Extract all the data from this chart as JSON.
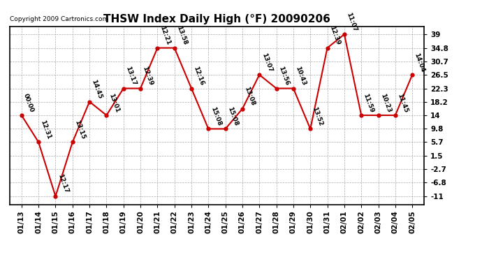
{
  "title": "THSW Index Daily High (°F) 20090206",
  "copyright": "Copyright 2009 Cartronics.com",
  "dates": [
    "01/13",
    "01/14",
    "01/15",
    "01/16",
    "01/17",
    "01/18",
    "01/19",
    "01/20",
    "01/21",
    "01/22",
    "01/23",
    "01/24",
    "01/25",
    "01/26",
    "01/27",
    "01/28",
    "01/29",
    "01/30",
    "01/31",
    "02/01",
    "02/02",
    "02/03",
    "02/04",
    "02/05"
  ],
  "values": [
    14.0,
    5.7,
    -11.0,
    5.7,
    18.2,
    14.0,
    22.3,
    22.3,
    34.8,
    34.8,
    22.3,
    9.8,
    9.8,
    16.0,
    26.5,
    22.3,
    22.3,
    9.8,
    34.8,
    39.0,
    14.0,
    14.0,
    14.0,
    26.5
  ],
  "labels": [
    "00:00",
    "12:31",
    "12:17",
    "13:15",
    "14:45",
    "13:01",
    "13:17",
    "12:39",
    "12:21",
    "13:58",
    "12:16",
    "15:08",
    "15:08",
    "13:08",
    "13:07",
    "13:56",
    "10:43",
    "13:52",
    "12:39",
    "11:07",
    "11:59",
    "10:23",
    "11:45",
    "14:04"
  ],
  "line_color": "#cc0000",
  "marker_color": "#cc0000",
  "bg_color": "#ffffff",
  "grid_color": "#aaaaaa",
  "yticks": [
    39.0,
    34.8,
    30.7,
    26.5,
    22.3,
    18.2,
    14.0,
    9.8,
    5.7,
    1.5,
    -2.7,
    -6.8,
    -11.0
  ],
  "ylim": [
    -13.5,
    41.5
  ],
  "title_fontsize": 11,
  "label_fontsize": 6.5,
  "tick_fontsize": 7.5
}
